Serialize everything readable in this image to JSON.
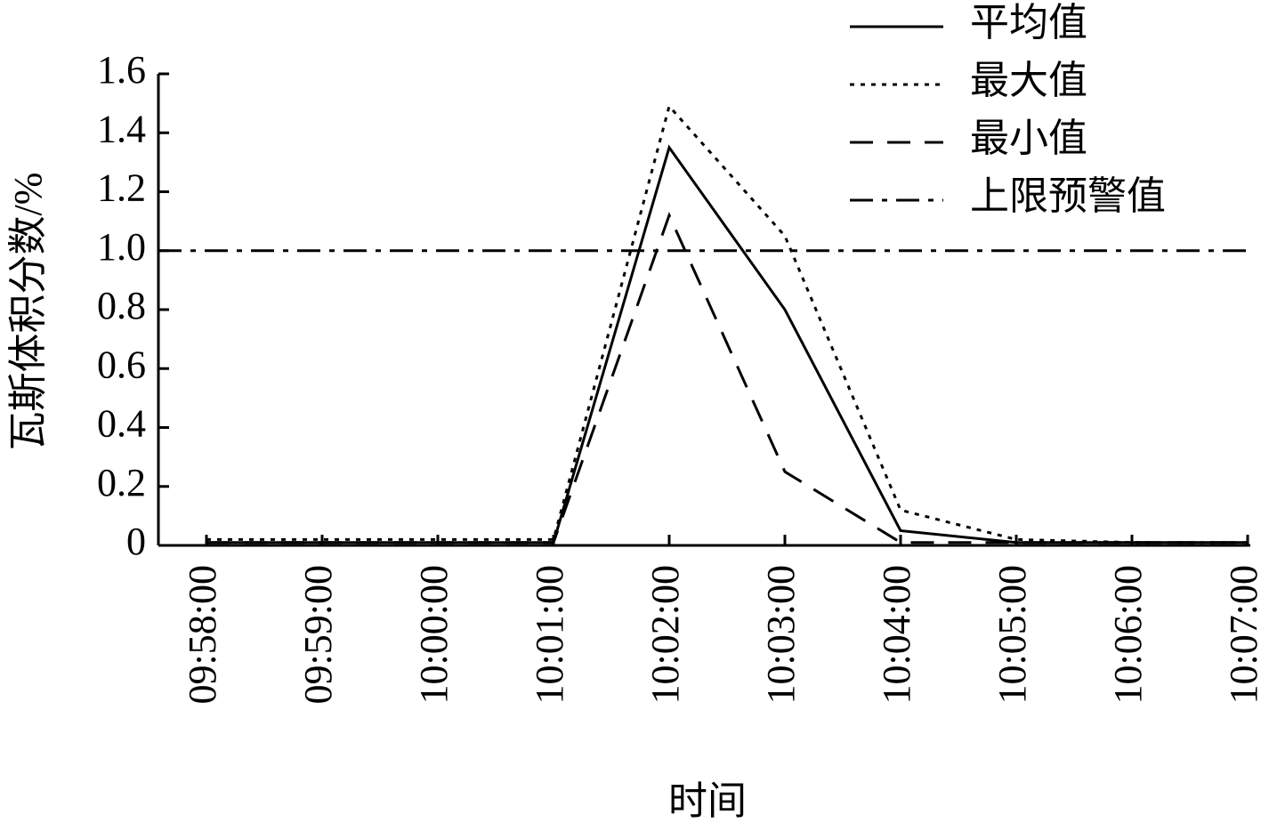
{
  "chart_data": {
    "type": "line",
    "x_label": "时间",
    "y_label": "瓦斯体积分数/%",
    "categories": [
      "09:58:00",
      "09:59:00",
      "10:00:00",
      "10:01:00",
      "10:02:00",
      "10:03:00",
      "10:04:00",
      "10:05:00",
      "10:06:00",
      "10:07:00"
    ],
    "series": [
      {
        "name": "平均值",
        "color": "#000000",
        "dash": "solid",
        "values": [
          0.01,
          0.01,
          0.01,
          0.01,
          1.35,
          0.8,
          0.05,
          0.01,
          0.01,
          0.01
        ]
      },
      {
        "name": "最大值",
        "color": "#000000",
        "dash": "dotted",
        "values": [
          0.02,
          0.02,
          0.02,
          0.02,
          1.49,
          1.05,
          0.12,
          0.02,
          0.01,
          0.01
        ]
      },
      {
        "name": "最小值",
        "color": "#000000",
        "dash": "dashed",
        "values": [
          0.01,
          0.01,
          0.01,
          0.01,
          1.12,
          0.25,
          0.01,
          0.01,
          0.01,
          0.01
        ]
      }
    ],
    "threshold": {
      "name": "上限预警值",
      "value": 1,
      "color": "#000000",
      "dash": "dashdot"
    },
    "ylim": [
      0,
      1.6
    ],
    "yticks": [
      0,
      0.2,
      0.4,
      0.6,
      0.8,
      {
        "value": 1,
        "label": "1.0"
      },
      1.2,
      1.4,
      1.6
    ],
    "legend": "upper right",
    "grid": false
  }
}
